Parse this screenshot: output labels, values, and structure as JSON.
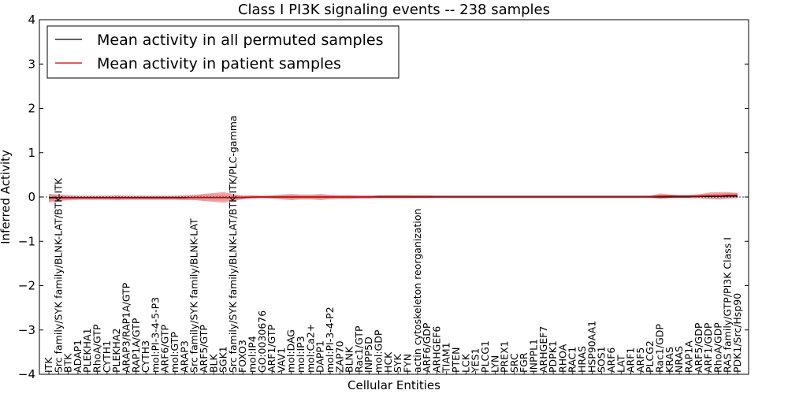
{
  "chart_data": {
    "type": "line",
    "title": "Class I PI3K signaling events -- 238 samples",
    "xlabel": "Cellular Entities",
    "ylabel": "Inferred Activity",
    "ylim": [
      -4,
      4
    ],
    "yticks": [
      -4,
      -3,
      -2,
      -1,
      0,
      1,
      2,
      3,
      4
    ],
    "ytick_labels": [
      "−4",
      "−3",
      "−2",
      "−1",
      "0",
      "1",
      "2",
      "3",
      "4"
    ],
    "legend_position": "top-left",
    "categories": [
      "ITK",
      "Src family/SYK family/BLNK-LAT/BTK-ITK",
      "BTK",
      "ADAP1",
      "PLEKHA1",
      "RhoA/GTP",
      "CYTH1",
      "PLEKHA2",
      "ARAP3/RAP1A/GTP",
      "RAP1A/GTP",
      "CYTH3",
      "mol:PI-3-4-5-P3",
      "ARF6/GTP",
      "mol:GTP",
      "ARAP3",
      "Src family/SYK family/BLNK-LAT",
      "ARF5/GTP",
      "BLK",
      "SGK1",
      "Src family/SYK family/BLNK-LAT/BTK-ITK/PLC-gamma",
      "FOXO3",
      "mol:IP4",
      "GO:0030676",
      "ARF1/GTP",
      "VAV1",
      "mol:DAG",
      "mol:IP3",
      "mol:Ca2+",
      "DAPP1",
      "mol:PI-3-4-P2",
      "ZAP70",
      "BLNK",
      "Rac1/GTP",
      "INPP5D",
      "mol:GDP",
      "HCK",
      "SYK",
      "FYN",
      "actin cytoskeleton reorganization",
      "ARF6/GDP",
      "ARHGEF6",
      "TIAM1",
      "PTEN",
      "LCK",
      "YES1",
      "PLCG1",
      "LYN",
      "PREX1",
      "SRC",
      "FGR",
      "INPPL1",
      "ARHGEF7",
      "PDPK1",
      "RHOA",
      "RAC1",
      "HRAS",
      "HSP90AA1",
      "SOS1",
      "ARF6",
      "LAT",
      "ARF1",
      "ARF5",
      "PLCG2",
      "Rac1/GDP",
      "KRAS",
      "NRAS",
      "RAP1A",
      "ARF5/GDP",
      "ARF1/GDP",
      "RhoA/GDP",
      "RAS family/GTP/PI3K Class I",
      "PDK1/Src/Hsp90"
    ],
    "series": [
      {
        "name": "Mean activity in all permuted samples",
        "color": "#000000",
        "values": [
          -0.01,
          -0.01,
          -0.01,
          -0.01,
          -0.01,
          -0.01,
          -0.01,
          -0.01,
          -0.01,
          -0.01,
          -0.01,
          -0.01,
          -0.01,
          -0.01,
          -0.01,
          -0.01,
          -0.01,
          -0.01,
          -0.01,
          -0.01,
          -0.01,
          0,
          0,
          0,
          0,
          0,
          0,
          0,
          0,
          0,
          0,
          0,
          0,
          0,
          0,
          0,
          0,
          0,
          0,
          0,
          0,
          0,
          0,
          0,
          0,
          0,
          0,
          0,
          0,
          0,
          0,
          0,
          0,
          0,
          0,
          0,
          0,
          0,
          0,
          0,
          0,
          0,
          0,
          0,
          0,
          0,
          0,
          0.01,
          0.01,
          0.01,
          0.02,
          0.02
        ]
      },
      {
        "name": "Mean activity in patient samples",
        "color": "#cc0000",
        "values": [
          -0.03,
          -0.02,
          -0.02,
          -0.02,
          -0.02,
          -0.02,
          -0.02,
          -0.02,
          -0.02,
          -0.02,
          -0.02,
          -0.02,
          -0.02,
          -0.02,
          -0.02,
          -0.01,
          -0.01,
          -0.01,
          -0.01,
          -0.01,
          -0.01,
          0,
          0,
          0,
          0,
          0,
          0,
          0,
          0,
          0,
          0,
          0,
          0,
          0,
          0.01,
          0.01,
          0.01,
          0.01,
          0.01,
          0.01,
          0.01,
          0.01,
          0.01,
          0.01,
          0.01,
          0.01,
          0.01,
          0.01,
          0.01,
          0.01,
          0.01,
          0.01,
          0.01,
          0.01,
          0.01,
          0.01,
          0.01,
          0.01,
          0.01,
          0.01,
          0.01,
          0.01,
          0.01,
          0.02,
          0.02,
          0.02,
          0.02,
          0.02,
          0.03,
          0.03,
          0.04,
          0.04
        ]
      }
    ],
    "patient_band_halfwidth": [
      0.1,
      0.07,
      0.05,
      0.04,
      0.04,
      0.04,
      0.04,
      0.05,
      0.04,
      0.04,
      0.04,
      0.04,
      0.04,
      0.04,
      0.05,
      0.06,
      0.08,
      0.1,
      0.12,
      0.08,
      0.04,
      0.03,
      0.02,
      0.03,
      0.05,
      0.07,
      0.05,
      0.05,
      0.07,
      0.05,
      0.04,
      0.04,
      0.03,
      0.03,
      0.03,
      0.03,
      0.03,
      0.03,
      0.03,
      0.03,
      0.02,
      0.02,
      0.02,
      0.02,
      0.02,
      0.02,
      0.02,
      0.02,
      0.02,
      0.02,
      0.02,
      0.02,
      0.02,
      0.02,
      0.02,
      0.02,
      0.02,
      0.02,
      0.02,
      0.02,
      0.02,
      0.02,
      0.02,
      0.06,
      0.04,
      0.02,
      0.02,
      0.04,
      0.07,
      0.08,
      0.07,
      0.05
    ],
    "permuted_band_halfwidth": [
      0.08,
      0.07,
      0.07,
      0.06,
      0.06,
      0.06,
      0.06,
      0.06,
      0.06,
      0.06,
      0.06,
      0.06,
      0.06,
      0.06,
      0.06,
      0.06,
      0.07,
      0.07,
      0.07,
      0.06,
      0.05,
      0.05,
      0.05,
      0.05,
      0.06,
      0.06,
      0.06,
      0.06,
      0.06,
      0.05,
      0.05,
      0.05,
      0.05,
      0.05,
      0.05,
      0.05,
      0.05,
      0.05,
      0.04,
      0.04,
      0.04,
      0.04,
      0.04,
      0.04,
      0.04,
      0.04,
      0.04,
      0.04,
      0.04,
      0.04,
      0.04,
      0.04,
      0.04,
      0.04,
      0.04,
      0.04,
      0.04,
      0.04,
      0.04,
      0.04,
      0.04,
      0.04,
      0.04,
      0.05,
      0.05,
      0.05,
      0.05,
      0.06,
      0.06,
      0.07,
      0.07,
      0.07
    ]
  }
}
